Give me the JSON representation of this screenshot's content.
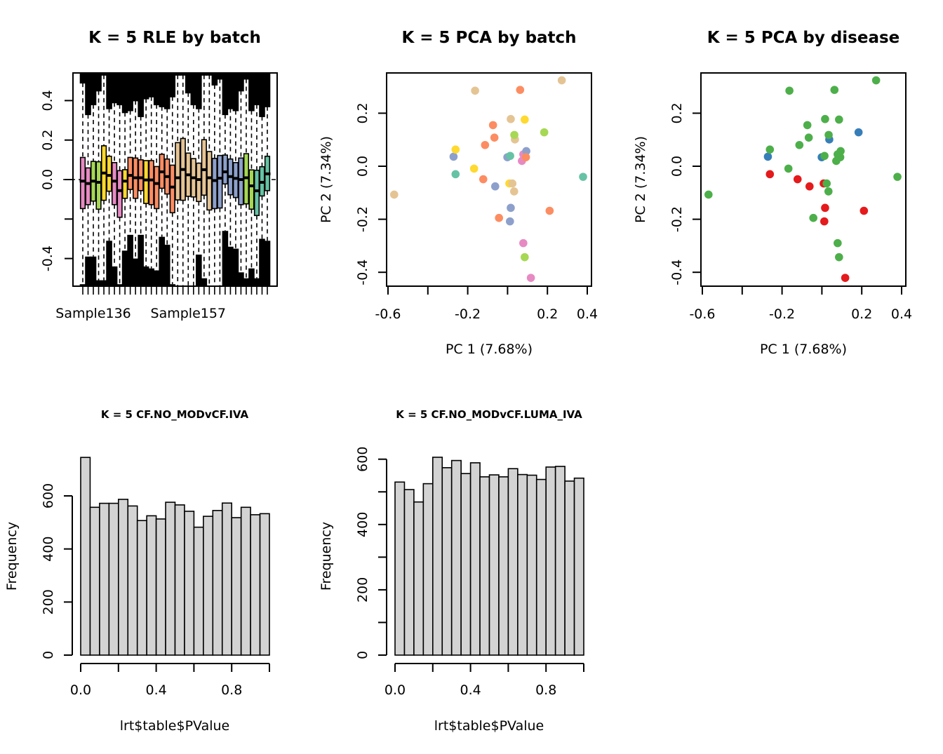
{
  "chart_data": [
    {
      "id": "rle",
      "type": "boxplot",
      "title": "K = 5 RLE by batch",
      "xlabel": "",
      "ylabel": "",
      "ylim": [
        -0.54,
        0.54
      ],
      "yticks": [
        -0.4,
        -0.2,
        0.0,
        0.2,
        0.4
      ],
      "ytick_labels": [
        "-0.4",
        "",
        "0.0",
        "0.2",
        "0.4"
      ],
      "xtick_labels_shown": [
        {
          "index": 2,
          "label": "Sample136"
        },
        {
          "index": 20,
          "label": "Sample157"
        }
      ],
      "reference_line": 0.0,
      "boxes": [
        {
          "batch_color": "#E78AC3",
          "q3": 0.112,
          "median": -0.008,
          "q1": -0.147,
          "upper": 0.49,
          "lower": -0.53
        },
        {
          "batch_color": "#E78AC3",
          "q3": 0.059,
          "median": -0.02,
          "q1": -0.127,
          "upper": 0.33,
          "lower": -0.39
        },
        {
          "batch_color": "#A6D854",
          "q3": 0.092,
          "median": -0.008,
          "q1": -0.109,
          "upper": 0.38,
          "lower": -0.39
        },
        {
          "batch_color": "#A6D854",
          "q3": 0.09,
          "median": -0.014,
          "q1": -0.15,
          "upper": 0.45,
          "lower": -0.51
        },
        {
          "batch_color": "#FFD92F",
          "q3": 0.171,
          "median": 0.033,
          "q1": -0.105,
          "upper": 0.53,
          "lower": -0.51
        },
        {
          "batch_color": "#FFD92F",
          "q3": 0.118,
          "median": 0.021,
          "q1": -0.059,
          "upper": 0.36,
          "lower": -0.31
        },
        {
          "batch_color": "#E78AC3",
          "q3": 0.086,
          "median": -0.008,
          "q1": -0.127,
          "upper": 0.39,
          "lower": -0.44
        },
        {
          "batch_color": "#E78AC3",
          "q3": 0.045,
          "median": -0.056,
          "q1": -0.191,
          "upper": 0.38,
          "lower": -0.53
        },
        {
          "batch_color": "#FFD92F",
          "q3": 0.05,
          "median": -0.008,
          "q1": -0.095,
          "upper": 0.34,
          "lower": -0.36
        },
        {
          "batch_color": "#FC8D62",
          "q3": 0.112,
          "median": 0.021,
          "q1": -0.05,
          "upper": 0.35,
          "lower": -0.28
        },
        {
          "batch_color": "#FC8D62",
          "q3": 0.109,
          "median": 0.009,
          "q1": -0.095,
          "upper": 0.4,
          "lower": -0.4
        },
        {
          "batch_color": "#FC8D62",
          "q3": 0.1,
          "median": 0.009,
          "q1": -0.056,
          "upper": 0.32,
          "lower": -0.28
        },
        {
          "batch_color": "#FFD92F",
          "q3": 0.096,
          "median": -0.002,
          "q1": -0.121,
          "upper": 0.41,
          "lower": -0.44
        },
        {
          "batch_color": "#FC8D62",
          "q3": 0.096,
          "median": -0.002,
          "q1": -0.127,
          "upper": 0.42,
          "lower": -0.45
        },
        {
          "batch_color": "#FC8D62",
          "q3": 0.066,
          "median": -0.02,
          "q1": -0.147,
          "upper": 0.38,
          "lower": -0.46
        },
        {
          "batch_color": "#FC8D62",
          "q3": 0.128,
          "median": 0.039,
          "q1": -0.044,
          "upper": 0.37,
          "lower": -0.29
        },
        {
          "batch_color": "#FC8D62",
          "q3": 0.104,
          "median": 0.015,
          "q1": -0.073,
          "upper": 0.36,
          "lower": -0.33
        },
        {
          "batch_color": "#FC8D62",
          "q3": 0.073,
          "median": -0.038,
          "q1": -0.168,
          "upper": 0.42,
          "lower": -0.53
        },
        {
          "batch_color": "#E5C494",
          "q3": 0.187,
          "median": 0.009,
          "q1": -0.103,
          "upper": 0.53,
          "lower": -0.54
        },
        {
          "batch_color": "#E5C494",
          "q3": 0.208,
          "median": 0.051,
          "q1": -0.105,
          "upper": 0.53,
          "lower": -0.54
        },
        {
          "batch_color": "#E5C494",
          "q3": 0.134,
          "median": 0.024,
          "q1": -0.085,
          "upper": 0.44,
          "lower": -0.54
        },
        {
          "batch_color": "#E5C494",
          "q3": 0.106,
          "median": 0.009,
          "q1": -0.088,
          "upper": 0.38,
          "lower": -0.54
        },
        {
          "batch_color": "#E5C494",
          "q3": 0.083,
          "median": 0.0,
          "q1": -0.111,
          "upper": 0.36,
          "lower": -0.38
        },
        {
          "batch_color": "#E5C494",
          "q3": 0.202,
          "median": 0.05,
          "q1": -0.079,
          "upper": 0.53,
          "lower": -0.5
        },
        {
          "batch_color": "#E5C494",
          "q3": 0.142,
          "median": 0.009,
          "q1": -0.154,
          "upper": 0.53,
          "lower": -0.54
        },
        {
          "batch_color": "#8DA0CB",
          "q3": 0.107,
          "median": -0.005,
          "q1": -0.147,
          "upper": 0.48,
          "lower": -0.54
        },
        {
          "batch_color": "#8DA0CB",
          "q3": 0.122,
          "median": 0.007,
          "q1": -0.144,
          "upper": 0.51,
          "lower": -0.54
        },
        {
          "batch_color": "#8DA0CB",
          "q3": 0.124,
          "median": 0.039,
          "q1": -0.022,
          "upper": 0.33,
          "lower": -0.26
        },
        {
          "batch_color": "#8DA0CB",
          "q3": 0.104,
          "median": 0.015,
          "q1": -0.077,
          "upper": 0.36,
          "lower": -0.34
        },
        {
          "batch_color": "#8DA0CB",
          "q3": 0.086,
          "median": 0.006,
          "q1": -0.091,
          "upper": 0.35,
          "lower": -0.35
        },
        {
          "batch_color": "#8DA0CB",
          "q3": 0.109,
          "median": 0.0,
          "q1": -0.127,
          "upper": 0.45,
          "lower": -0.47
        },
        {
          "batch_color": "#A6D854",
          "q3": 0.131,
          "median": 0.009,
          "q1": -0.123,
          "upper": 0.51,
          "lower": -0.5
        },
        {
          "batch_color": "#A6D854",
          "q3": 0.049,
          "median": -0.032,
          "q1": -0.15,
          "upper": 0.35,
          "lower": -0.45
        },
        {
          "batch_color": "#66C2A5",
          "q3": 0.047,
          "median": -0.057,
          "q1": -0.182,
          "upper": 0.38,
          "lower": -0.5
        },
        {
          "batch_color": "#66C2A5",
          "q3": 0.065,
          "median": -0.014,
          "q1": -0.083,
          "upper": 0.32,
          "lower": -0.3
        },
        {
          "batch_color": "#66C2A5",
          "q3": 0.118,
          "median": 0.029,
          "q1": -0.056,
          "upper": 0.37,
          "lower": -0.31
        }
      ]
    },
    {
      "id": "pca_batch",
      "type": "scatter",
      "title": "K = 5 PCA by batch",
      "xlabel": "PC 1 (7.68%)",
      "ylabel": "PC 2 (7.34%)",
      "xlim": [
        -0.6,
        0.4
      ],
      "ylim": [
        -0.45,
        0.35
      ],
      "xticks": [
        -0.6,
        -0.4,
        -0.2,
        0.0,
        0.2,
        0.4
      ],
      "xtick_labels": [
        "-0.6",
        "",
        "-0.2",
        "",
        "0.2",
        "0.4"
      ],
      "yticks": [
        -0.4,
        -0.2,
        0.0,
        0.2
      ],
      "ytick_labels": [
        "-0.4",
        "-0.2",
        "0.0",
        "0.2"
      ],
      "color_by": "batch"
    },
    {
      "id": "pca_disease",
      "type": "scatter",
      "title": "K = 5 PCA by disease",
      "xlabel": "PC 1 (7.68%)",
      "ylabel": "PC 2 (7.34%)",
      "xlim": [
        -0.6,
        0.4
      ],
      "ylim": [
        -0.45,
        0.35
      ],
      "xticks": [
        -0.6,
        -0.4,
        -0.2,
        0.0,
        0.2,
        0.4
      ],
      "xtick_labels": [
        "-0.6",
        "",
        "-0.2",
        "",
        "0.2",
        "0.4"
      ],
      "yticks": [
        -0.4,
        -0.2,
        0.0,
        0.2
      ],
      "ytick_labels": [
        "-0.4",
        "-0.2",
        "0.0",
        "0.2"
      ],
      "color_by": "disease"
    },
    {
      "id": "hist_iva",
      "type": "bar",
      "title": "K = 5 CF.NO_MODvCF.IVA",
      "xlabel": "lrt$table$PValue",
      "ylabel": "Frequency",
      "xlim": [
        0,
        1
      ],
      "ylim": [
        0,
        745
      ],
      "bin_width": 0.05,
      "xticks": [
        0.0,
        0.2,
        0.4,
        0.6,
        0.8,
        1.0
      ],
      "xtick_labels": [
        "0.0",
        "",
        "0.4",
        "",
        "0.8",
        ""
      ],
      "yticks": [
        0,
        200,
        400,
        600
      ],
      "ytick_labels": [
        "0",
        "200",
        "400",
        "600"
      ],
      "values": [
        745,
        557,
        572,
        572,
        587,
        562,
        507,
        525,
        513,
        576,
        566,
        542,
        482,
        523,
        545,
        573,
        518,
        557,
        529,
        533
      ]
    },
    {
      "id": "hist_luma_iva",
      "type": "bar",
      "title": "K = 5 CF.NO_MODvCF.LUMA_IVA",
      "xlabel": "lrt$table$PValue",
      "ylabel": "Frequency",
      "xlim": [
        0,
        1
      ],
      "ylim": [
        0,
        606
      ],
      "bin_width": 0.05,
      "xticks": [
        0.0,
        0.2,
        0.4,
        0.6,
        0.8,
        1.0
      ],
      "xtick_labels": [
        "0.0",
        "",
        "0.4",
        "",
        "0.8",
        ""
      ],
      "yticks": [
        0,
        100,
        200,
        300,
        400,
        500,
        600
      ],
      "ytick_labels": [
        "0",
        "",
        "200",
        "",
        "400",
        "",
        "600"
      ],
      "values": [
        530,
        507,
        469,
        525,
        606,
        574,
        596,
        556,
        589,
        546,
        552,
        546,
        571,
        553,
        551,
        538,
        576,
        578,
        533,
        542
      ]
    }
  ],
  "pca_points": [
    {
      "pc1": -0.569,
      "pc2": -0.107,
      "batch": "#E5C494",
      "disease": "#4DAF4A"
    },
    {
      "pc1": -0.163,
      "pc2": 0.285,
      "batch": "#E5C494",
      "disease": "#4DAF4A"
    },
    {
      "pc1": 0.063,
      "pc2": 0.288,
      "batch": "#FC8D62",
      "disease": "#4DAF4A"
    },
    {
      "pc1": 0.272,
      "pc2": 0.324,
      "batch": "#E5C494",
      "disease": "#4DAF4A"
    },
    {
      "pc1": 0.016,
      "pc2": 0.178,
      "batch": "#E5C494",
      "disease": "#4DAF4A"
    },
    {
      "pc1": 0.086,
      "pc2": 0.176,
      "batch": "#FFD92F",
      "disease": "#4DAF4A"
    },
    {
      "pc1": -0.073,
      "pc2": 0.155,
      "batch": "#FC8D62",
      "disease": "#4DAF4A"
    },
    {
      "pc1": -0.066,
      "pc2": 0.108,
      "batch": "#FC8D62",
      "disease": "#4DAF4A"
    },
    {
      "pc1": 0.037,
      "pc2": 0.101,
      "batch": "#E5C494",
      "disease": "#377EB8"
    },
    {
      "pc1": 0.034,
      "pc2": 0.118,
      "batch": "#A6D854",
      "disease": "#4DAF4A"
    },
    {
      "pc1": 0.184,
      "pc2": 0.128,
      "batch": "#A6D854",
      "disease": "#377EB8"
    },
    {
      "pc1": -0.113,
      "pc2": 0.08,
      "batch": "#FC8D62",
      "disease": "#4DAF4A"
    },
    {
      "pc1": -0.271,
      "pc2": 0.036,
      "batch": "#8DA0CB",
      "disease": "#377EB8"
    },
    {
      "pc1": -0.261,
      "pc2": 0.063,
      "batch": "#FFD92F",
      "disease": "#4DAF4A"
    },
    {
      "pc1": -0.001,
      "pc2": 0.034,
      "batch": "#8DA0CB",
      "disease": "#377EB8"
    },
    {
      "pc1": 0.013,
      "pc2": 0.039,
      "batch": "#66C2A5",
      "disease": "#4DAF4A"
    },
    {
      "pc1": 0.072,
      "pc2": 0.02,
      "batch": "#E78AC3",
      "disease": "#4DAF4A"
    },
    {
      "pc1": 0.079,
      "pc2": 0.045,
      "batch": "#E78AC3",
      "disease": "#4DAF4A"
    },
    {
      "pc1": 0.094,
      "pc2": 0.057,
      "batch": "#8DA0CB",
      "disease": "#4DAF4A"
    },
    {
      "pc1": 0.092,
      "pc2": 0.034,
      "batch": "#FC8D62",
      "disease": "#4DAF4A"
    },
    {
      "pc1": -0.261,
      "pc2": -0.03,
      "batch": "#66C2A5",
      "disease": "#E41A1C"
    },
    {
      "pc1": -0.168,
      "pc2": -0.009,
      "batch": "#FFD92F",
      "disease": "#4DAF4A"
    },
    {
      "pc1": -0.122,
      "pc2": -0.049,
      "batch": "#FC8D62",
      "disease": "#E41A1C"
    },
    {
      "pc1": -0.062,
      "pc2": -0.076,
      "batch": "#8DA0CB",
      "disease": "#E41A1C"
    },
    {
      "pc1": 0.009,
      "pc2": -0.065,
      "batch": "#FFD92F",
      "disease": "#E41A1C"
    },
    {
      "pc1": 0.024,
      "pc2": -0.065,
      "batch": "#E5C494",
      "disease": "#4DAF4A"
    },
    {
      "pc1": 0.033,
      "pc2": -0.095,
      "batch": "#E5C494",
      "disease": "#4DAF4A"
    },
    {
      "pc1": 0.379,
      "pc2": -0.04,
      "batch": "#66C2A5",
      "disease": "#4DAF4A"
    },
    {
      "pc1": 0.016,
      "pc2": -0.157,
      "batch": "#8DA0CB",
      "disease": "#E41A1C"
    },
    {
      "pc1": 0.211,
      "pc2": -0.168,
      "batch": "#FC8D62",
      "disease": "#E41A1C"
    },
    {
      "pc1": -0.043,
      "pc2": -0.195,
      "batch": "#FC8D62",
      "disease": "#4DAF4A"
    },
    {
      "pc1": 0.012,
      "pc2": -0.208,
      "batch": "#8DA0CB",
      "disease": "#E41A1C"
    },
    {
      "pc1": 0.079,
      "pc2": -0.29,
      "batch": "#E78AC3",
      "disease": "#4DAF4A"
    },
    {
      "pc1": 0.086,
      "pc2": -0.343,
      "batch": "#A6D854",
      "disease": "#4DAF4A"
    },
    {
      "pc1": 0.117,
      "pc2": -0.421,
      "batch": "#E78AC3",
      "disease": "#E41A1C"
    }
  ]
}
